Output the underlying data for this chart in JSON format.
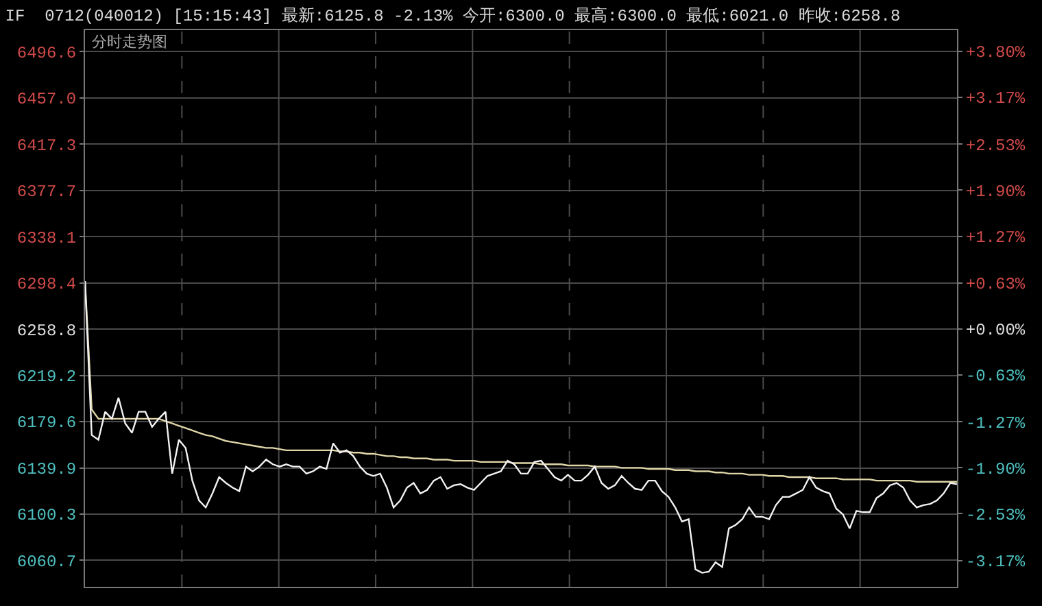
{
  "chart_data": {
    "type": "line",
    "title": "IF  0712(040012) [15:15:43] 最新:6125.8 -2.13% 今开:6300.0 最高:6300.0 最低:6021.0 昨收:6258.8",
    "subtitle": "分时走势图",
    "categories": [
      null,
      null,
      null,
      null,
      null,
      null,
      null,
      null,
      null,
      null,
      null,
      null,
      null,
      null,
      null,
      null,
      null,
      null,
      null,
      null,
      null,
      null,
      null,
      null,
      null,
      null,
      null,
      null,
      null,
      null,
      null,
      null,
      null,
      null,
      null,
      null,
      null,
      null,
      null,
      null,
      null,
      null,
      null,
      null,
      null,
      null,
      null,
      null,
      null,
      null,
      null,
      null,
      null,
      null,
      null,
      null,
      null,
      null,
      null,
      null,
      null,
      null,
      null,
      null,
      null,
      null,
      null,
      null,
      null,
      null,
      null,
      null,
      null,
      null,
      null,
      null,
      null,
      null,
      null,
      null,
      null,
      null,
      null,
      null,
      null,
      null,
      null,
      null,
      null,
      null,
      null,
      null,
      null,
      null,
      null,
      null,
      null,
      null,
      null,
      null,
      null,
      null,
      null,
      null,
      null,
      null,
      null,
      null,
      null,
      null,
      null,
      null,
      null,
      null,
      null,
      null,
      null,
      null,
      null,
      null,
      null,
      null,
      null,
      null,
      null,
      null,
      null,
      null,
      null,
      null,
      null
    ],
    "series": [
      {
        "color": "#e0d6a8",
        "values": [
          6300,
          6190,
          6182,
          6182,
          6182,
          6182,
          6182,
          6182,
          6182,
          6182,
          6182,
          6182,
          6180,
          6178,
          6176,
          6174,
          6172,
          6170,
          6168,
          6167,
          6165,
          6163,
          6162,
          6161,
          6160,
          6159,
          6158,
          6157,
          6157,
          6156,
          6155,
          6155,
          6155,
          6155,
          6155,
          6155,
          6155,
          6155,
          6154,
          6154,
          6153,
          6153,
          6152,
          6152,
          6151,
          6150,
          6150,
          6149,
          6149,
          6148,
          6148,
          6148,
          6147,
          6147,
          6147,
          6146,
          6146,
          6146,
          6146,
          6145,
          6145,
          6145,
          6145,
          6145,
          6144,
          6144,
          6144,
          6144,
          6143,
          6143,
          6143,
          6143,
          6142,
          6142,
          6142,
          6142,
          6141,
          6141,
          6141,
          6141,
          6140,
          6140,
          6140,
          6140,
          6139,
          6139,
          6139,
          6139,
          6138,
          6138,
          6138,
          6137,
          6137,
          6137,
          6136,
          6136,
          6135,
          6135,
          6135,
          6134,
          6134,
          6134,
          6133,
          6133,
          6133,
          6132,
          6132,
          6132,
          6132,
          6131,
          6131,
          6131,
          6131,
          6130,
          6130,
          6130,
          6130,
          6130,
          6129,
          6129,
          6129,
          6129,
          6129,
          6129,
          6128,
          6128,
          6128,
          6128,
          6128,
          6128,
          6128
        ]
      },
      {
        "color": "#f2f2f2",
        "values": [
          6300,
          6168,
          6164,
          6188,
          6182,
          6200,
          6178,
          6170,
          6188,
          6188,
          6175,
          6182,
          6188,
          6135,
          6164,
          6157,
          6129,
          6112,
          6106,
          6118,
          6132,
          6127,
          6123,
          6120,
          6141,
          6137,
          6141,
          6147,
          6143,
          6141,
          6143,
          6141,
          6141,
          6135,
          6137,
          6141,
          6139,
          6161,
          6153,
          6155,
          6150,
          6141,
          6135,
          6133,
          6135,
          6123,
          6106,
          6112,
          6123,
          6127,
          6118,
          6121,
          6129,
          6132,
          6122,
          6125,
          6126,
          6123,
          6121,
          6127,
          6133,
          6135,
          6137,
          6146,
          6143,
          6135,
          6135,
          6145,
          6146,
          6139,
          6132,
          6129,
          6134,
          6129,
          6129,
          6134,
          6141,
          6127,
          6122,
          6125,
          6133,
          6127,
          6122,
          6121,
          6129,
          6129,
          6120,
          6115,
          6106,
          6094,
          6096,
          6053,
          6050,
          6051,
          6059,
          6055,
          6088,
          6091,
          6096,
          6106,
          6098,
          6098,
          6096,
          6108,
          6115,
          6115,
          6118,
          6121,
          6132,
          6123,
          6120,
          6118,
          6105,
          6100,
          6088,
          6103,
          6102,
          6102,
          6114,
          6118,
          6125,
          6127,
          6123,
          6112,
          6106,
          6108,
          6109,
          6112,
          6118,
          6127,
          6126
        ]
      }
    ],
    "ylim": [
      6038,
      6515
    ],
    "yticks": [
      6496.6,
      {
        "value": 6457,
        "label": "6457.0"
      },
      6417.3,
      6377.7,
      6338.1,
      6298.4,
      6258.8,
      6219.2,
      6179.6,
      6139.9,
      6100.3,
      6060.7
    ],
    "y2lim": [
      -3.53,
      4.09
    ],
    "y2ticks": [
      {
        "value": 3.8,
        "label": "+3.80%"
      },
      {
        "value": 3.17,
        "label": "+3.17%"
      },
      {
        "value": 2.53,
        "label": "+2.53%"
      },
      {
        "value": 1.9,
        "label": "+1.90%"
      },
      {
        "value": 1.27,
        "label": "+1.27%"
      },
      {
        "value": 0.63,
        "label": "+0.63%"
      },
      {
        "value": 0.0,
        "label": "+0.00%"
      },
      {
        "value": -0.63,
        "label": "-0.63%"
      },
      {
        "value": -1.27,
        "label": "-1.27%"
      },
      {
        "value": -1.9,
        "label": "-1.90%"
      },
      {
        "value": -2.53,
        "label": "-2.53%"
      },
      {
        "value": -3.17,
        "label": "-3.17%"
      }
    ],
    "grid": true,
    "tick_labels": "y",
    "marker": "none",
    "line_style": "solid"
  }
}
